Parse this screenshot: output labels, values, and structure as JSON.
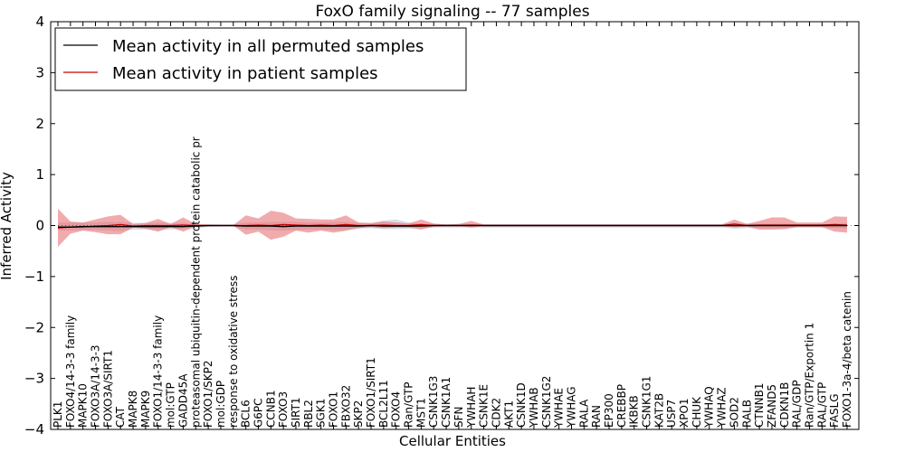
{
  "chart_data": {
    "type": "line",
    "title": "FoxO family signaling -- 77 samples",
    "xlabel": "Cellular Entities",
    "ylabel": "Inferred Activity",
    "ylim": [
      -4,
      4
    ],
    "yticks": [
      -4,
      -3,
      -2,
      -1,
      0,
      1,
      2,
      3,
      4
    ],
    "grid": false,
    "legend_position": "top-left",
    "colors": {
      "permuted_line": "#000000",
      "permuted_band": "#bfbfcf",
      "patient_line": "#cc0000",
      "patient_band": "#e8666a"
    },
    "categories": [
      "PLK1",
      "FOXO4/14-3-3 family",
      "MAPK10",
      "FOXO3A/14-3-3",
      "FOXO3A/SIRT1",
      "CAT",
      "MAPK8",
      "MAPK9",
      "FOXO1/14-3-3 family",
      "mol:GTP",
      "GADD45A",
      "proteasomal ubiquitin-dependent protein catabolic pr",
      "FOXO1/SKP2",
      "mol:GDP",
      "response to oxidative stress",
      "BCL6",
      "G6PC",
      "CCNB1",
      "FOXO3",
      "SIRT1",
      "RBL2",
      "SGK1",
      "FOXO1",
      "FBXO32",
      "SKP2",
      "FOXO1/SIRT1",
      "BCL2L11",
      "FOXO4",
      "Ran/GTP",
      "MST1",
      "CSNK1G3",
      "CSNK1A1",
      "SFN",
      "YWHAH",
      "CSNK1E",
      "CDK2",
      "AKT1",
      "CSNK1D",
      "YWHAB",
      "CSNK1G2",
      "YWHAE",
      "YWHAG",
      "RALA",
      "RAN",
      "EP300",
      "CREBBP",
      "IKBKB",
      "CSNK1G1",
      "KAT2B",
      "USP7",
      "XPO1",
      "CHUK",
      "YWHAQ",
      "YWHAZ",
      "SOD2",
      "RALB",
      "CTNNB1",
      "ZFAND5",
      "CDKN1B",
      "RAL/GDP",
      "Ran/GTP/Exportin 1",
      "RAL/GTP",
      "FASLG",
      "FOXO1-3a-4/beta catenin"
    ],
    "series": [
      {
        "name": "Mean activity in all permuted samples",
        "values": [
          -0.03,
          -0.03,
          -0.02,
          -0.02,
          -0.02,
          -0.02,
          -0.02,
          -0.02,
          -0.02,
          -0.02,
          -0.02,
          -0.01,
          0.0,
          0.0,
          0.0,
          -0.01,
          -0.01,
          -0.01,
          -0.02,
          -0.01,
          -0.01,
          -0.01,
          -0.01,
          -0.01,
          -0.01,
          0.0,
          -0.01,
          -0.01,
          -0.01,
          -0.01,
          0.0,
          0.0,
          0.0,
          0.0,
          0.0,
          0.0,
          0.0,
          0.0,
          0.0,
          0.0,
          0.0,
          0.0,
          0.0,
          0.0,
          0.0,
          0.0,
          0.0,
          0.0,
          0.0,
          0.0,
          0.0,
          0.0,
          0.0,
          0.0,
          0.0,
          0.0,
          0.0,
          0.0,
          0.0,
          0.0,
          0.0,
          0.0,
          0.0,
          0.0
        ],
        "band_low": [
          -0.1,
          -0.1,
          -0.09,
          -0.09,
          -0.1,
          -0.11,
          -0.08,
          -0.08,
          -0.09,
          -0.08,
          -0.07,
          -0.05,
          -0.03,
          -0.02,
          -0.02,
          -0.08,
          -0.08,
          -0.09,
          -0.1,
          -0.09,
          -0.08,
          -0.08,
          -0.09,
          -0.09,
          -0.06,
          -0.05,
          -0.07,
          -0.07,
          -0.06,
          -0.05,
          -0.04,
          -0.04,
          -0.04,
          -0.04,
          -0.04,
          -0.04,
          -0.04,
          -0.04,
          -0.04,
          -0.04,
          -0.04,
          -0.04,
          -0.04,
          -0.04,
          -0.04,
          -0.04,
          -0.04,
          -0.04,
          -0.04,
          -0.04,
          -0.04,
          -0.04,
          -0.04,
          -0.04,
          -0.06,
          -0.05,
          -0.05,
          -0.05,
          -0.05,
          -0.04,
          -0.04,
          -0.04,
          -0.05,
          -0.06
        ],
        "band_high": [
          0.06,
          0.06,
          0.06,
          0.06,
          0.07,
          0.07,
          0.05,
          0.05,
          0.06,
          0.05,
          0.05,
          0.03,
          0.02,
          0.02,
          0.02,
          0.06,
          0.06,
          0.07,
          0.07,
          0.07,
          0.06,
          0.06,
          0.07,
          0.07,
          0.05,
          0.04,
          0.1,
          0.12,
          0.06,
          0.04,
          0.03,
          0.03,
          0.03,
          0.03,
          0.03,
          0.03,
          0.03,
          0.03,
          0.03,
          0.03,
          0.03,
          0.03,
          0.03,
          0.03,
          0.03,
          0.03,
          0.03,
          0.03,
          0.03,
          0.03,
          0.03,
          0.03,
          0.03,
          0.03,
          0.05,
          0.04,
          0.04,
          0.04,
          0.04,
          0.03,
          0.03,
          0.03,
          0.04,
          0.05
        ]
      },
      {
        "name": "Mean activity in patient samples",
        "values": [
          -0.05,
          -0.03,
          -0.03,
          -0.01,
          0.0,
          0.02,
          -0.01,
          0.0,
          0.0,
          0.0,
          0.01,
          0.0,
          0.0,
          0.0,
          0.0,
          0.0,
          0.01,
          0.0,
          0.02,
          0.01,
          0.0,
          0.01,
          0.0,
          0.02,
          0.0,
          0.0,
          0.01,
          0.0,
          0.0,
          0.02,
          0.0,
          0.0,
          0.0,
          0.01,
          0.0,
          0.0,
          0.0,
          0.0,
          0.0,
          0.0,
          0.0,
          0.0,
          0.0,
          0.0,
          0.0,
          0.0,
          0.0,
          0.0,
          0.0,
          0.0,
          0.0,
          0.0,
          0.0,
          0.0,
          0.03,
          0.0,
          0.01,
          0.01,
          0.01,
          0.01,
          0.01,
          0.01,
          0.02,
          0.01
        ],
        "band_low": [
          -0.42,
          -0.16,
          -0.1,
          -0.13,
          -0.17,
          -0.17,
          -0.04,
          -0.06,
          -0.12,
          -0.03,
          -0.12,
          -0.02,
          -0.01,
          0.0,
          0.0,
          -0.18,
          -0.12,
          -0.28,
          -0.22,
          -0.1,
          -0.14,
          -0.1,
          -0.14,
          -0.1,
          -0.05,
          -0.03,
          -0.05,
          -0.04,
          -0.04,
          -0.08,
          -0.02,
          -0.01,
          -0.01,
          -0.04,
          -0.01,
          -0.01,
          -0.01,
          -0.01,
          -0.01,
          -0.01,
          -0.01,
          -0.01,
          -0.01,
          -0.01,
          -0.01,
          -0.01,
          -0.01,
          -0.01,
          -0.01,
          -0.01,
          -0.01,
          -0.01,
          -0.01,
          -0.01,
          -0.04,
          -0.02,
          -0.08,
          -0.08,
          -0.07,
          -0.03,
          -0.03,
          -0.03,
          -0.12,
          -0.14
        ],
        "band_high": [
          0.33,
          0.08,
          0.06,
          0.12,
          0.18,
          0.21,
          0.03,
          0.05,
          0.13,
          0.03,
          0.16,
          0.03,
          0.02,
          0.01,
          0.01,
          0.2,
          0.14,
          0.29,
          0.25,
          0.14,
          0.13,
          0.12,
          0.12,
          0.2,
          0.06,
          0.05,
          0.08,
          0.06,
          0.04,
          0.12,
          0.04,
          0.02,
          0.03,
          0.09,
          0.02,
          0.02,
          0.02,
          0.02,
          0.02,
          0.02,
          0.02,
          0.02,
          0.02,
          0.02,
          0.02,
          0.02,
          0.02,
          0.02,
          0.02,
          0.02,
          0.02,
          0.02,
          0.02,
          0.02,
          0.12,
          0.03,
          0.09,
          0.16,
          0.16,
          0.06,
          0.06,
          0.06,
          0.18,
          0.17
        ]
      }
    ]
  }
}
